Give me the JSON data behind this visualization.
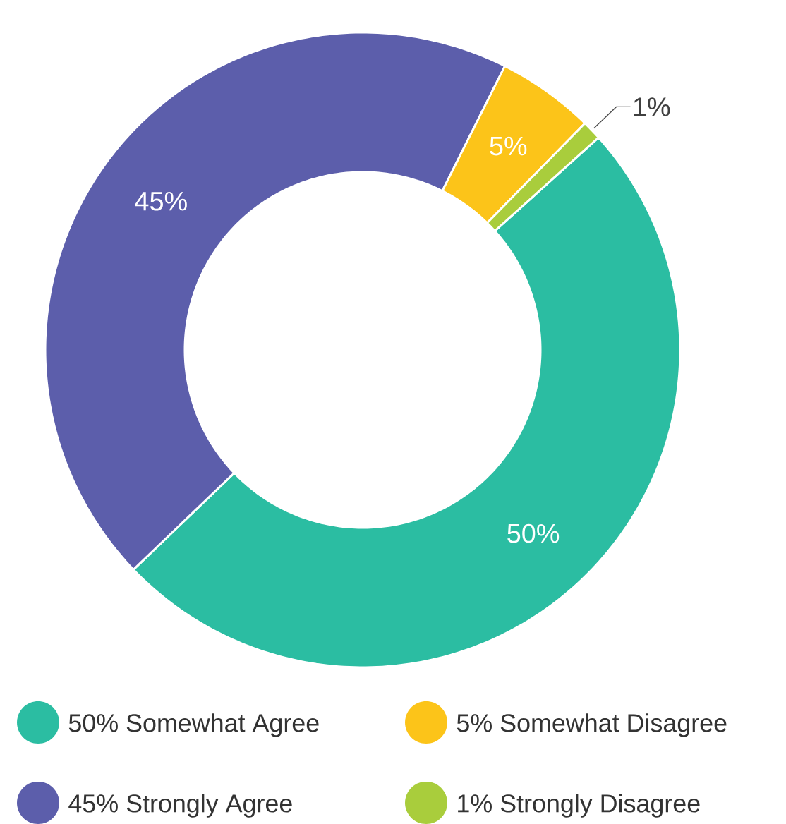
{
  "chart_data": {
    "type": "donut",
    "categories": [
      "50% Somewhat Agree",
      "45% Strongly Agree",
      "5% Somewhat Disagree",
      "1% Strongly Disagree"
    ],
    "values": [
      50,
      45,
      5,
      1
    ],
    "colors": [
      "#2bbda2",
      "#5c5eab",
      "#fcc419",
      "#a9cd3c"
    ],
    "value_labels": [
      "50%",
      "45%",
      "5%",
      "1%"
    ],
    "legend": "bottom"
  }
}
